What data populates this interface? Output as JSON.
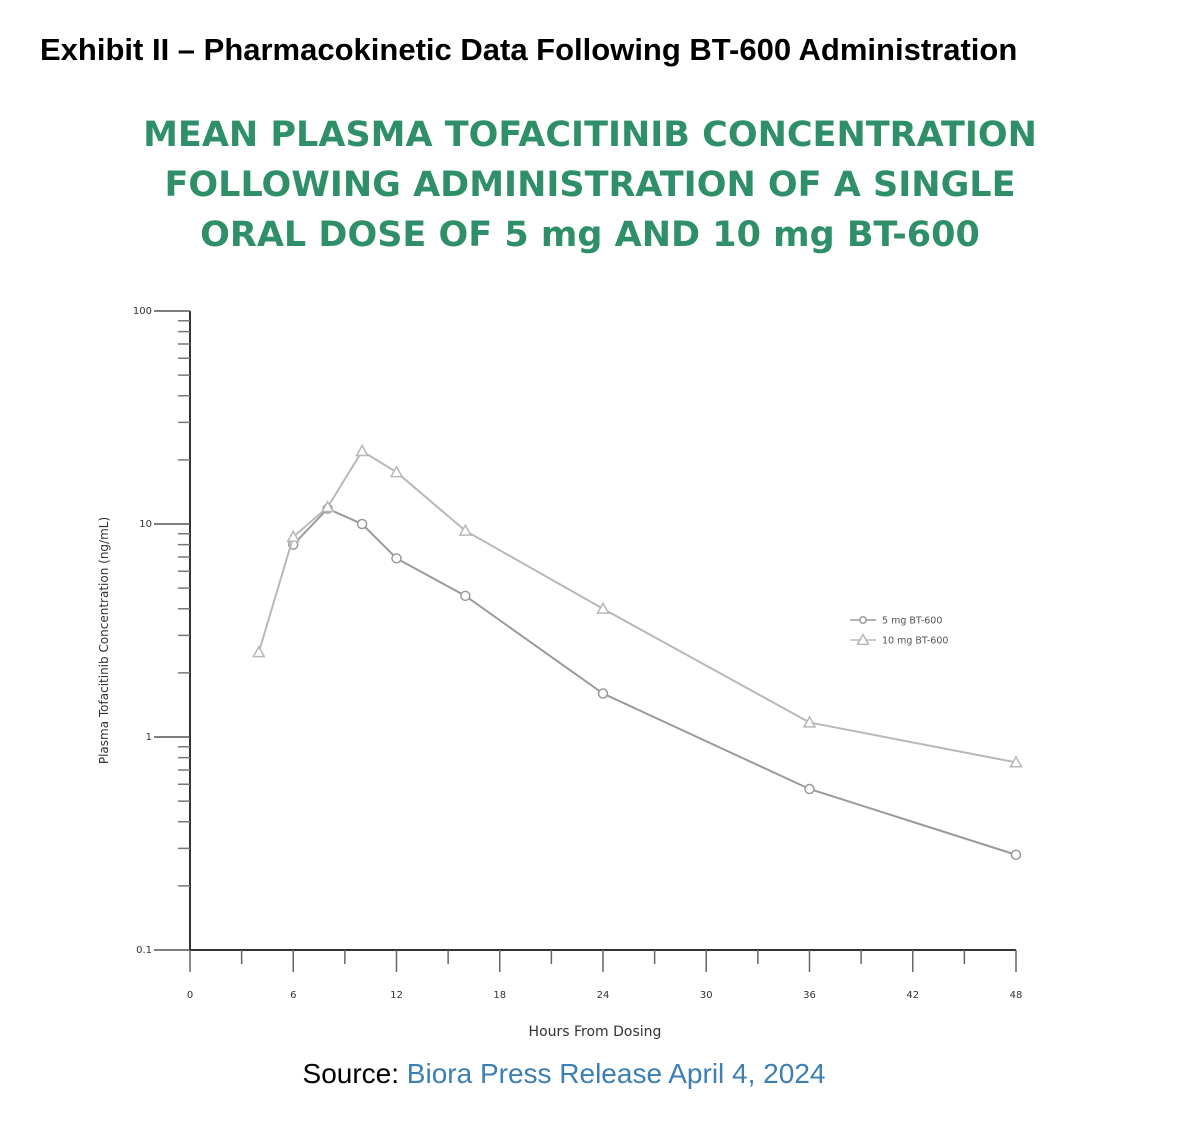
{
  "exhibit_title": "Exhibit II – Pharmacokinetic Data Following BT-600 Administration",
  "source": {
    "prefix": "Source: ",
    "link_text": "Biora Press Release April 4, 2024"
  },
  "colors": {
    "title_green": "#2f8f68",
    "link_blue": "#3b7fb5",
    "series_5mg": "#9a9a9a",
    "series_10mg": "#b8b8b8"
  },
  "chart_data": {
    "type": "line",
    "title_lines": [
      "MEAN PLASMA TOFACITINIB CONCENTRATION",
      "FOLLOWING ADMINISTRATION OF A SINGLE",
      "ORAL DOSE OF 5 mg AND 10 mg BT-600"
    ],
    "xlabel": "Hours From Dosing",
    "ylabel": "Plasma Tofacitinib Concentration (ng/mL)",
    "xlim": [
      0,
      48
    ],
    "ylim": [
      0.1,
      100
    ],
    "yscale": "log",
    "x_ticks": [
      0,
      6,
      12,
      18,
      24,
      30,
      36,
      42,
      48
    ],
    "x_tick_labels": [
      "0",
      "6",
      "12",
      "18",
      "24",
      "30",
      "36",
      "42",
      "48"
    ],
    "y_ticks": [
      0.1,
      1,
      10,
      100
    ],
    "y_tick_labels": [
      "0.1",
      "1",
      "10",
      "100"
    ],
    "grid": false,
    "legend_position": "right",
    "series": [
      {
        "name": "5 mg BT-600",
        "marker": "circle",
        "legend_label": "-○- 5 mg BT-600",
        "x": [
          6,
          8,
          10,
          12,
          16,
          24,
          36,
          48
        ],
        "y": [
          8.0,
          11.8,
          10.0,
          6.9,
          4.6,
          1.6,
          0.57,
          0.28
        ]
      },
      {
        "name": "10 mg BT-600",
        "marker": "triangle",
        "legend_label": "-△- 10 mg BT-600",
        "x": [
          4,
          6,
          8,
          10,
          12,
          16,
          24,
          36,
          48
        ],
        "y": [
          2.5,
          8.7,
          12.0,
          22.0,
          17.5,
          9.3,
          4.0,
          1.17,
          0.76
        ]
      }
    ]
  }
}
